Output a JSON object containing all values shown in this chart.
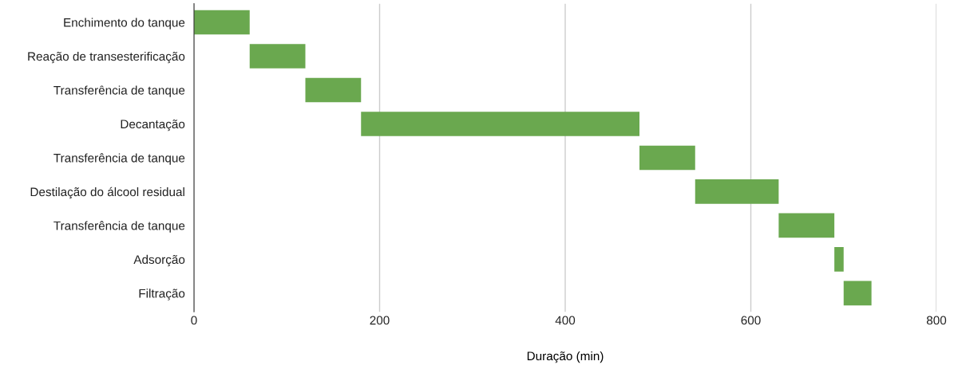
{
  "chart_data": {
    "type": "bar",
    "orientation": "horizontal",
    "xlabel": "Duração (min)",
    "categories": [
      "Enchimento do tanque",
      "Reação de transesterificação",
      "Transferência de tanque",
      "Decantação",
      "Transferência de tanque",
      "Destilação do álcool residual",
      "Transferência de tanque",
      "Adsorção",
      "Filtração"
    ],
    "base": [
      0,
      60,
      120,
      180,
      480,
      540,
      630,
      690,
      700
    ],
    "values": [
      60,
      60,
      60,
      300,
      60,
      90,
      60,
      10,
      30
    ],
    "color": "#6aa84f",
    "xlim": [
      0,
      800
    ],
    "xticks": [
      0,
      200,
      400,
      600,
      800
    ],
    "grid": "x",
    "legend": false
  }
}
